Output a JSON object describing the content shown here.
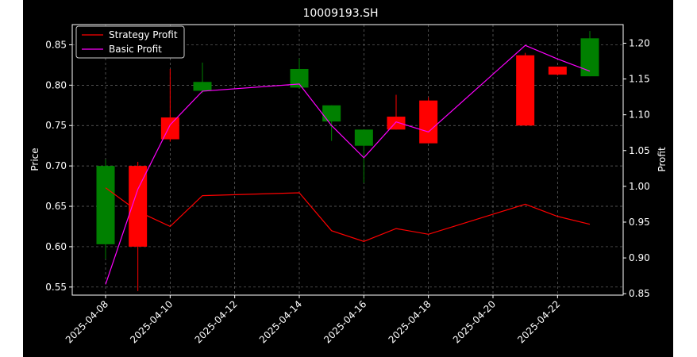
{
  "chart_data": {
    "type": "candlestick",
    "title": "10009193.SH",
    "xlabel": "",
    "ylabel": "Price",
    "y2label": "Profit",
    "ylim": [
      0.54,
      0.875
    ],
    "y2lim": [
      0.848,
      1.226
    ],
    "yticks": [
      "0.55",
      "0.60",
      "0.65",
      "0.70",
      "0.75",
      "0.80",
      "0.85"
    ],
    "y2ticks": [
      "0.85",
      "0.90",
      "0.95",
      "1.00",
      "1.05",
      "1.10",
      "1.15",
      "1.20"
    ],
    "xtick_labels": [
      "2025-04-08",
      "2025-04-10",
      "2025-04-12",
      "2025-04-14",
      "2025-04-16",
      "2025-04-18",
      "2025-04-20",
      "2025-04-22"
    ],
    "grid": true,
    "legend_position": "top-left",
    "colors": {
      "background": "#000000",
      "up": "#008000",
      "down": "#ff0000",
      "strategy": "#ff0000",
      "basic": "#ff00ff",
      "grid": "#808080"
    },
    "candles": [
      {
        "date": "2025-04-08",
        "open": 0.603,
        "high": 0.708,
        "low": 0.585,
        "close": 0.7
      },
      {
        "date": "2025-04-09",
        "open": 0.7,
        "high": 0.705,
        "low": 0.545,
        "close": 0.6
      },
      {
        "date": "2025-04-10",
        "open": 0.76,
        "high": 0.82,
        "low": 0.73,
        "close": 0.733
      },
      {
        "date": "2025-04-11",
        "open": 0.793,
        "high": 0.828,
        "low": 0.79,
        "close": 0.804
      },
      {
        "date": "2025-04-14",
        "open": 0.797,
        "high": 0.833,
        "low": 0.796,
        "close": 0.82
      },
      {
        "date": "2025-04-15",
        "open": 0.755,
        "high": 0.775,
        "low": 0.731,
        "close": 0.775
      },
      {
        "date": "2025-04-16",
        "open": 0.725,
        "high": 0.745,
        "low": 0.679,
        "close": 0.745
      },
      {
        "date": "2025-04-17",
        "open": 0.761,
        "high": 0.788,
        "low": 0.745,
        "close": 0.745
      },
      {
        "date": "2025-04-18",
        "open": 0.781,
        "high": 0.785,
        "low": 0.728,
        "close": 0.728
      },
      {
        "date": "2025-04-21",
        "open": 0.837,
        "high": 0.84,
        "low": 0.75,
        "close": 0.75
      },
      {
        "date": "2025-04-22",
        "open": 0.823,
        "high": 0.823,
        "low": 0.812,
        "close": 0.813
      },
      {
        "date": "2025-04-23",
        "open": 0.811,
        "high": 0.867,
        "low": 0.811,
        "close": 0.858
      }
    ],
    "series": [
      {
        "name": "Strategy Profit",
        "axis": "right",
        "values": [
          0.998,
          0.965,
          0.944,
          0.987,
          0.991,
          0.938,
          0.923,
          0.941,
          0.933,
          0.975,
          0.958,
          0.947
        ]
      },
      {
        "name": "Basic Profit",
        "axis": "right",
        "values": [
          0.863,
          0.996,
          1.086,
          1.133,
          1.143,
          1.085,
          1.04,
          1.09,
          1.076,
          1.197,
          1.178,
          1.161
        ]
      }
    ]
  }
}
